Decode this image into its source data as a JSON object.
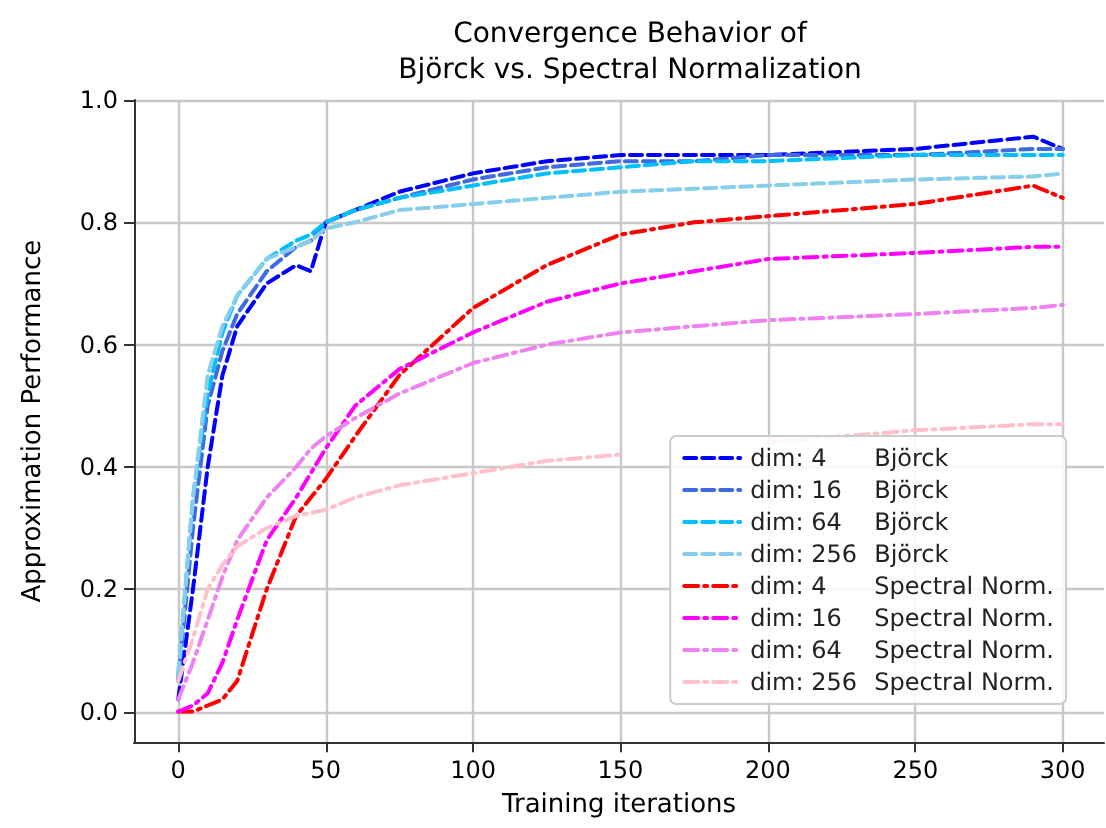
{
  "chart_data": {
    "type": "line",
    "title": "Convergence Behavior of\nBjörck vs. Spectral Normalization",
    "xlabel": "Training iterations",
    "ylabel": "Approximation Performance",
    "xlim": [
      -15,
      314
    ],
    "xticks": [
      0,
      50,
      100,
      150,
      200,
      250,
      300
    ],
    "ylim": [
      -0.05,
      1.0
    ],
    "yticks": [
      {
        "value": 0,
        "label": "0.0"
      },
      0.2,
      0.4,
      0.6,
      0.8,
      {
        "value": 1,
        "label": "1.0"
      }
    ],
    "grid": true,
    "legend": "bottom right",
    "marker": "none",
    "x": [
      0,
      5,
      10,
      15,
      20,
      30,
      40,
      45,
      50,
      60,
      75,
      100,
      125,
      150,
      175,
      200,
      250,
      290,
      300
    ],
    "series": [
      {
        "name": "dim: 4 Björck",
        "color": "#0000ff",
        "line_style": "dashed",
        "values": [
          0.02,
          0.2,
          0.4,
          0.55,
          0.63,
          0.7,
          0.73,
          0.72,
          0.8,
          0.82,
          0.85,
          0.88,
          0.9,
          0.91,
          0.91,
          0.91,
          0.92,
          0.94,
          0.92
        ]
      },
      {
        "name": "dim: 16 Björck",
        "color": "#4169e1",
        "line_style": "dashed",
        "values": [
          0.05,
          0.3,
          0.5,
          0.59,
          0.65,
          0.72,
          0.76,
          0.77,
          0.8,
          0.82,
          0.84,
          0.87,
          0.89,
          0.9,
          0.9,
          0.91,
          0.91,
          0.92,
          0.92
        ]
      },
      {
        "name": "dim: 64 Björck",
        "color": "#00bfff",
        "line_style": "dashed",
        "values": [
          0.06,
          0.35,
          0.52,
          0.62,
          0.68,
          0.74,
          0.77,
          0.78,
          0.8,
          0.82,
          0.84,
          0.86,
          0.88,
          0.89,
          0.9,
          0.9,
          0.91,
          0.91,
          0.91
        ]
      },
      {
        "name": "dim: 256 Björck",
        "color": "#87ceeb",
        "line_style": "dashed",
        "values": [
          0.06,
          0.35,
          0.55,
          0.63,
          0.68,
          0.74,
          0.76,
          0.77,
          0.79,
          0.8,
          0.82,
          0.83,
          0.84,
          0.85,
          0.855,
          0.86,
          0.87,
          0.875,
          0.88
        ]
      },
      {
        "name": "dim: 4 Spectral Norm.",
        "color": "#ff0000",
        "line_style": "dashdot",
        "values": [
          0.0,
          0.0,
          0.01,
          0.02,
          0.05,
          0.2,
          0.32,
          0.35,
          0.38,
          0.45,
          0.55,
          0.66,
          0.73,
          0.78,
          0.8,
          0.81,
          0.83,
          0.86,
          0.84
        ]
      },
      {
        "name": "dim: 16 Spectral Norm.",
        "color": "#ff00ff",
        "line_style": "dashdot",
        "values": [
          0.0,
          0.01,
          0.03,
          0.08,
          0.15,
          0.28,
          0.35,
          0.39,
          0.43,
          0.5,
          0.56,
          0.62,
          0.67,
          0.7,
          0.72,
          0.74,
          0.75,
          0.76,
          0.76
        ]
      },
      {
        "name": "dim: 64 Spectral Norm.",
        "color": "#ee82ee",
        "line_style": "dashdot",
        "values": [
          0.02,
          0.08,
          0.15,
          0.22,
          0.28,
          0.35,
          0.4,
          0.43,
          0.45,
          0.48,
          0.52,
          0.57,
          0.6,
          0.62,
          0.63,
          0.64,
          0.65,
          0.66,
          0.665
        ]
      },
      {
        "name": "dim: 256 Spectral Norm.",
        "color": "#ffc0cb",
        "line_style": "dashdot",
        "values": [
          0.05,
          0.12,
          0.2,
          0.24,
          0.27,
          0.3,
          0.32,
          0.325,
          0.33,
          0.35,
          0.37,
          0.39,
          0.41,
          0.42,
          null,
          0.44,
          0.46,
          0.47,
          0.47
        ]
      }
    ]
  }
}
